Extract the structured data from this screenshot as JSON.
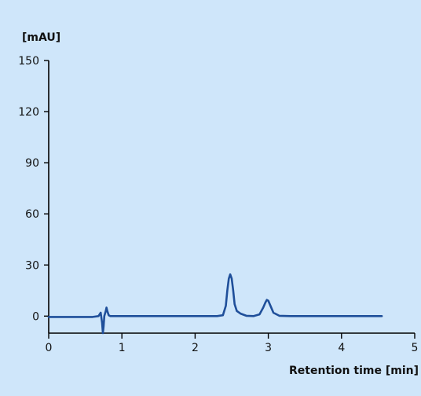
{
  "chart_data": {
    "type": "line",
    "ylabel": "[mAU]",
    "xlabel": "Retention time [min]",
    "xlim": [
      0,
      5
    ],
    "ylim": [
      -10,
      150
    ],
    "xticks": [
      "0",
      "1",
      "2",
      "3",
      "4",
      "5"
    ],
    "yticks": [
      "0",
      "30",
      "60",
      "90",
      "120",
      "150"
    ],
    "grid": false,
    "series": [
      {
        "color": "#1f4f9a",
        "x": [
          0.0,
          0.6,
          0.68,
          0.71,
          0.73,
          0.74,
          0.75,
          0.76,
          0.78,
          0.79,
          0.8,
          0.82,
          0.84,
          0.88,
          1.0,
          2.3,
          2.38,
          2.42,
          2.44,
          2.46,
          2.48,
          2.5,
          2.52,
          2.54,
          2.57,
          2.62,
          2.7,
          2.8,
          2.88,
          2.93,
          2.96,
          2.98,
          3.0,
          3.03,
          3.07,
          3.15,
          3.3,
          4.55
        ],
        "y": [
          -0.5,
          -0.5,
          0.0,
          2.0,
          -4.0,
          -10.0,
          -6.0,
          0.0,
          3.0,
          5.0,
          3.0,
          0.5,
          0.0,
          0.0,
          0.0,
          0.0,
          0.5,
          6.0,
          15.0,
          22.0,
          24.5,
          22.0,
          15.0,
          7.0,
          3.0,
          1.5,
          0.2,
          0.0,
          1.0,
          5.0,
          8.0,
          9.5,
          9.0,
          6.0,
          2.0,
          0.2,
          0.0,
          0.0
        ]
      }
    ]
  }
}
